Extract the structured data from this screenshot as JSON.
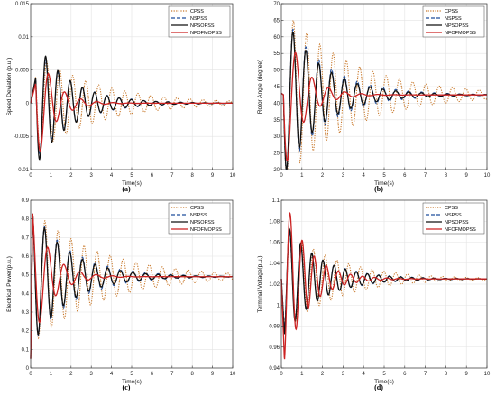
{
  "chart_data": [
    {
      "type": "line",
      "panel_label": "(a)",
      "xlabel": "Time(s)",
      "ylabel": "Speed Deviation (p.u.)",
      "xlim": [
        0,
        10
      ],
      "ylim": [
        -0.01,
        0.015
      ],
      "xticks": [
        "0",
        "1",
        "2",
        "3",
        "4",
        "5",
        "6",
        "7",
        "8",
        "9",
        "10"
      ],
      "yticks": [
        "-0.01",
        "-0.005",
        "0",
        "0.005",
        "0.01",
        "0.015"
      ],
      "ytick_values": [
        -0.01,
        -0.005,
        0,
        0.005,
        0.01,
        0.015
      ],
      "grid": true,
      "legend_position": "top-right",
      "series": [
        {
          "name": "CPSS",
          "style": "dotted",
          "color": "#c8782a",
          "final": 0,
          "amp": 0.0075,
          "decay": 0.32,
          "freq": 1.55,
          "phase": 1.0,
          "delay": 0.25,
          "start": 0
        },
        {
          "name": "NSPSS",
          "style": "dashed",
          "color": "#1f4e9c",
          "final": 0,
          "amp": 0.0085,
          "decay": 0.55,
          "freq": 1.65,
          "phase": 1.1,
          "delay": 0.25,
          "start": 0
        },
        {
          "name": "NPSOPSS",
          "style": "solid",
          "color": "#111111",
          "final": 0,
          "amp": 0.0095,
          "decay": 0.6,
          "freq": 1.65,
          "phase": 1.15,
          "delay": 0.25,
          "start": 0
        },
        {
          "name": "NFOFMOPSS",
          "style": "solid",
          "color": "#cc2222",
          "final": 0,
          "amp": 0.0095,
          "decay": 1.2,
          "freq": 1.25,
          "phase": 1.25,
          "delay": 0.25,
          "start": 0
        }
      ]
    },
    {
      "type": "line",
      "panel_label": "(b)",
      "xlabel": "Time(s)",
      "ylabel": "Rotor Angle (degree)",
      "xlim": [
        0,
        10
      ],
      "ylim": [
        20,
        70
      ],
      "xticks": [
        "0",
        "1",
        "2",
        "3",
        "4",
        "5",
        "6",
        "7",
        "8",
        "9",
        "10"
      ],
      "yticks": [
        "20",
        "25",
        "30",
        "35",
        "40",
        "45",
        "50",
        "55",
        "60",
        "65",
        "70"
      ],
      "ytick_values": [
        20,
        25,
        30,
        35,
        40,
        45,
        50,
        55,
        60,
        65,
        70
      ],
      "grid": true,
      "legend_position": "top-right",
      "series": [
        {
          "name": "CPSS",
          "style": "dotted",
          "color": "#c8782a",
          "final": 42.5,
          "amp": 26,
          "decay": 0.3,
          "freq": 1.55,
          "phase": 1.57,
          "delay": 0.1,
          "start": 43
        },
        {
          "name": "NSPSS",
          "style": "dashed",
          "color": "#1f4e9c",
          "final": 42.5,
          "amp": 25,
          "decay": 0.5,
          "freq": 1.6,
          "phase": 1.57,
          "delay": 0.1,
          "start": 43
        },
        {
          "name": "NPSOPSS",
          "style": "solid",
          "color": "#111111",
          "final": 42.5,
          "amp": 24.5,
          "decay": 0.55,
          "freq": 1.6,
          "phase": 1.57,
          "delay": 0.1,
          "start": 43
        },
        {
          "name": "NFOFMOPSS",
          "style": "solid",
          "color": "#cc2222",
          "final": 42.5,
          "amp": 24.5,
          "decay": 1.1,
          "freq": 1.25,
          "phase": 1.57,
          "delay": 0.1,
          "start": 43
        }
      ]
    },
    {
      "type": "line",
      "panel_label": "(c)",
      "xlabel": "Time(s)",
      "ylabel": "Electrical Power(p.u.)",
      "xlim": [
        0,
        10
      ],
      "ylim": [
        0,
        0.9
      ],
      "xticks": [
        "0",
        "1",
        "2",
        "3",
        "4",
        "5",
        "6",
        "7",
        "8",
        "9",
        "10"
      ],
      "yticks": [
        "0",
        "0.1",
        "0.2",
        "0.3",
        "0.4",
        "0.5",
        "0.6",
        "0.7",
        "0.8",
        "0.9"
      ],
      "ytick_values": [
        0,
        0.1,
        0.2,
        0.3,
        0.4,
        0.5,
        0.6,
        0.7,
        0.8,
        0.9
      ],
      "grid": true,
      "legend_position": "top-right",
      "series": [
        {
          "name": "CPSS",
          "style": "dotted",
          "color": "#c8782a",
          "final": 0.49,
          "amp": 0.36,
          "decay": 0.3,
          "freq": 1.55,
          "phase": 0.35,
          "delay": 0.1,
          "start": 0.05
        },
        {
          "name": "NSPSS",
          "style": "dashed",
          "color": "#1f4e9c",
          "final": 0.49,
          "amp": 0.36,
          "decay": 0.5,
          "freq": 1.6,
          "phase": 0.35,
          "delay": 0.1,
          "start": 0.05
        },
        {
          "name": "NPSOPSS",
          "style": "solid",
          "color": "#111111",
          "final": 0.49,
          "amp": 0.36,
          "decay": 0.55,
          "freq": 1.6,
          "phase": 0.35,
          "delay": 0.1,
          "start": 0.05
        },
        {
          "name": "NFOFMOPSS",
          "style": "solid",
          "color": "#cc2222",
          "final": 0.49,
          "amp": 0.36,
          "decay": 1.1,
          "freq": 1.25,
          "phase": 0.35,
          "delay": 0.1,
          "start": 0.05
        }
      ]
    },
    {
      "type": "line",
      "panel_label": "(d)",
      "xlabel": "Time(s)",
      "ylabel": "Terminal Voltage(p.u.)",
      "xlim": [
        0,
        10
      ],
      "ylim": [
        0.94,
        1.1
      ],
      "xticks": [
        "0",
        "1",
        "2",
        "3",
        "4",
        "5",
        "6",
        "7",
        "8",
        "9",
        "10"
      ],
      "yticks": [
        "0.94",
        "0.96",
        "0.98",
        "1",
        "1.02",
        "1.04",
        "1.06",
        "1.08",
        "1.1"
      ],
      "ytick_values": [
        0.94,
        0.96,
        0.98,
        1.0,
        1.02,
        1.04,
        1.06,
        1.08,
        1.1
      ],
      "grid": true,
      "legend_position": "top-right",
      "series": [
        {
          "name": "CPSS",
          "style": "dotted",
          "color": "#c8782a",
          "final": 1.025,
          "amp": -0.05,
          "decay": 0.4,
          "freq": 1.75,
          "phase": 0.2,
          "delay": 0.15,
          "start": 1.025
        },
        {
          "name": "NSPSS",
          "style": "dashed",
          "color": "#1f4e9c",
          "final": 1.025,
          "amp": -0.05,
          "decay": 0.55,
          "freq": 1.85,
          "phase": 0.2,
          "delay": 0.15,
          "start": 1.025
        },
        {
          "name": "NPSOPSS",
          "style": "solid",
          "color": "#111111",
          "final": 1.025,
          "amp": -0.055,
          "decay": 0.6,
          "freq": 1.85,
          "phase": 0.2,
          "delay": 0.15,
          "start": 1.025
        },
        {
          "name": "NFOFMOPSS",
          "style": "solid",
          "color": "#cc2222",
          "final": 1.025,
          "amp": -0.08,
          "decay": 0.9,
          "freq": 1.7,
          "phase": 0.2,
          "delay": 0.15,
          "start": 1.025
        }
      ]
    }
  ]
}
